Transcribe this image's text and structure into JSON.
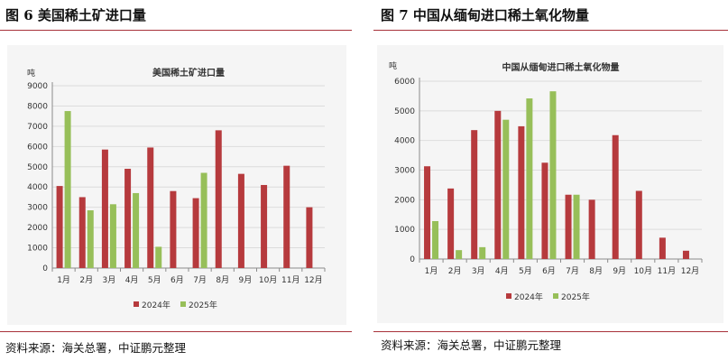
{
  "left": {
    "figure_title": "图 6 美国稀土矿进口量",
    "source": "资料来源：海关总署，中证鹏元整理"
  },
  "right": {
    "figure_title": "图 7  中国从缅甸进口稀土氧化物量",
    "source": "资料来源：海关总署，中证鹏元整理"
  },
  "colors": {
    "rule": "#a8323a",
    "series_2024": "#b63a3d",
    "series_2025": "#97bf59",
    "chart_bg": "#f5f5f5"
  },
  "chart_data": [
    {
      "type": "bar",
      "title": "美国稀土矿进口量",
      "ylabel": "吨",
      "xlabel": "",
      "ylim": [
        0,
        9000
      ],
      "yticks": [
        "0",
        "1000",
        "2000",
        "3000",
        "4000",
        "5000",
        "6000",
        "7000",
        "8000",
        "9000"
      ],
      "categories": [
        "1月",
        "2月",
        "3月",
        "4月",
        "5月",
        "6月",
        "7月",
        "8月",
        "9月",
        "10月",
        "11月",
        "12月"
      ],
      "series": [
        {
          "name": "2024年",
          "values": [
            4050,
            3500,
            5850,
            4900,
            5950,
            3800,
            3450,
            6800,
            4650,
            4100,
            5050,
            3000
          ]
        },
        {
          "name": "2025年",
          "values": [
            7750,
            2850,
            3150,
            3700,
            1050,
            null,
            4700,
            null,
            null,
            null,
            null,
            null
          ]
        }
      ],
      "legend": "bottom",
      "grid": true
    },
    {
      "type": "bar",
      "title": "中国从缅甸进口稀土氧化物量",
      "ylabel": "吨",
      "xlabel": "",
      "ylim": [
        0,
        6000
      ],
      "yticks": [
        "0",
        "1000",
        "2000",
        "3000",
        "4000",
        "5000",
        "6000"
      ],
      "categories": [
        "1月",
        "2月",
        "3月",
        "4月",
        "5月",
        "6月",
        "7月",
        "8月",
        "9月",
        "10月",
        "11月",
        "12月"
      ],
      "series": [
        {
          "name": "2024年",
          "values": [
            3130,
            2380,
            4350,
            5000,
            4480,
            3250,
            2170,
            2000,
            4180,
            2300,
            720,
            280
          ]
        },
        {
          "name": "2025年",
          "values": [
            1280,
            300,
            400,
            4700,
            5420,
            5660,
            2170,
            null,
            null,
            null,
            null,
            null
          ]
        }
      ],
      "legend": "bottom",
      "grid": true
    }
  ]
}
